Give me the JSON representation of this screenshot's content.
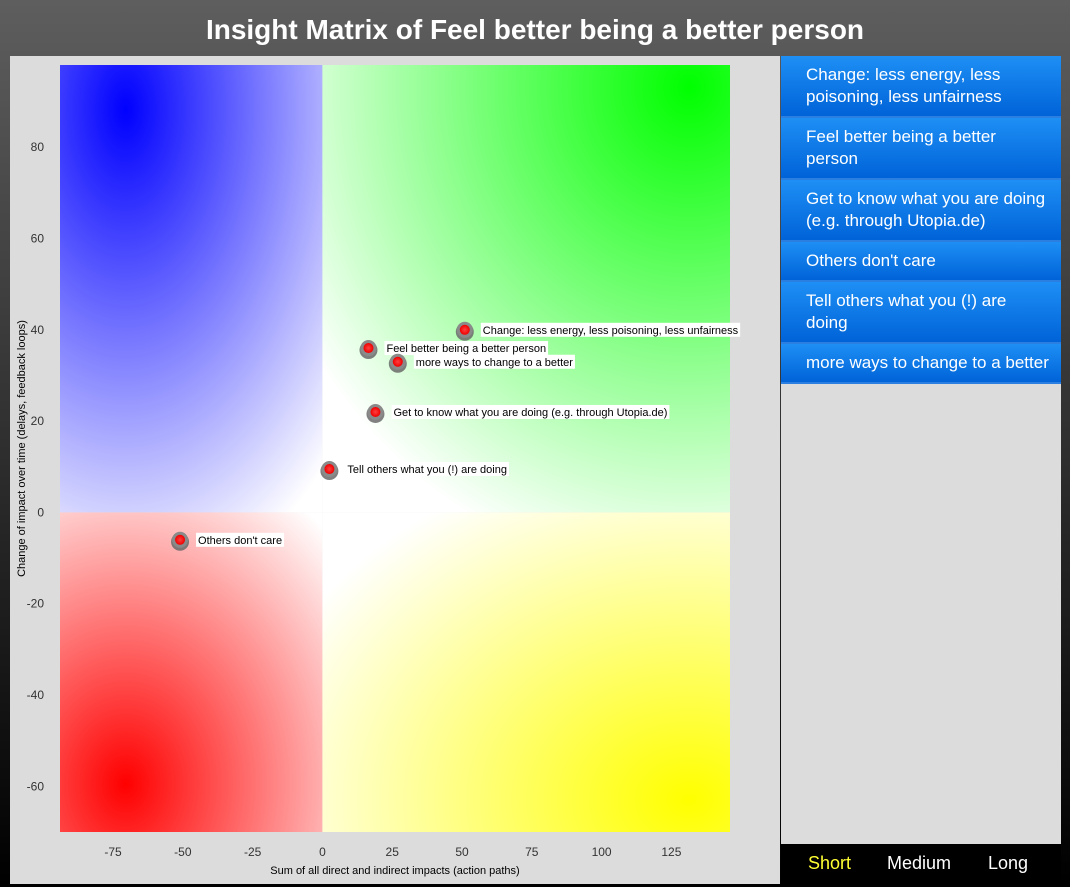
{
  "title": "Insight Matrix of Feel better being a better person",
  "chart_data": {
    "type": "scatter",
    "xlabel": "Sum of all direct and indirect impacts (action paths)",
    "ylabel": "Change of impact over time (delays, feedback loops)",
    "xlim": [
      -94,
      146
    ],
    "ylim": [
      -70,
      98
    ],
    "xticks": [
      -75,
      -50,
      -25,
      0,
      25,
      50,
      75,
      100,
      125
    ],
    "yticks": [
      -60,
      -40,
      -20,
      0,
      20,
      40,
      60,
      80
    ],
    "quadrant_colors": {
      "top_left": "#0000ff",
      "top_right": "#00ff00",
      "bottom_left": "#ff0000",
      "bottom_right": "#ffff00"
    },
    "points": [
      {
        "label": "Change: less energy, less poisoning, less unfairness",
        "x": 51,
        "y": 40
      },
      {
        "label": "Feel better being a better person",
        "x": 16.5,
        "y": 36
      },
      {
        "label": "more ways to change to a better",
        "x": 27,
        "y": 33
      },
      {
        "label": "Get to know what you are doing (e.g. through Utopia.de)",
        "x": 19,
        "y": 22
      },
      {
        "label": "Tell others what you (!) are doing",
        "x": 2.5,
        "y": 9.5
      },
      {
        "label": "Others don't care",
        "x": -51,
        "y": -6
      }
    ]
  },
  "sidebar": {
    "items": [
      "Change: less energy, less poisoning, less unfairness",
      "Feel better being a better person",
      "Get to know what you are doing (e.g. through Utopia.de)",
      "Others don't care",
      "Tell others what you (!) are doing",
      "more ways to change to a better"
    ]
  },
  "footer": {
    "short": "Short",
    "medium": "Medium",
    "long": "Long"
  }
}
